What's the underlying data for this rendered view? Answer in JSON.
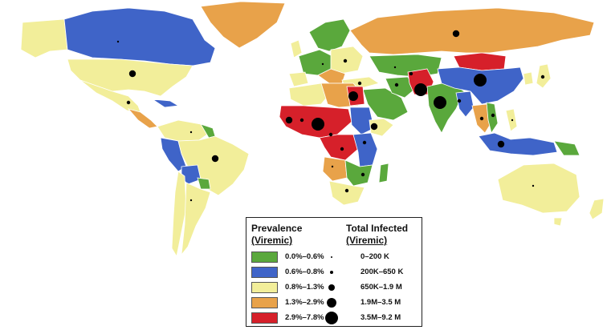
{
  "colors": {
    "c1": "#5aa83c",
    "c2": "#3f64c8",
    "c3": "#f2ee9a",
    "c4": "#e8a24a",
    "c5": "#d6202a"
  },
  "legend": {
    "prevalence_title": "Prevalence",
    "prevalence_sub": "(Viremic)",
    "infected_title": "Total Infected",
    "infected_sub": "(Viremic)",
    "prevalence_ranges": [
      {
        "label": "0.0%–0.6%",
        "color_key": "c1"
      },
      {
        "label": "0.6%–0.8%",
        "color_key": "c2"
      },
      {
        "label": "0.8%–1.3%",
        "color_key": "c3"
      },
      {
        "label": "1.3%–2.9%",
        "color_key": "c4"
      },
      {
        "label": "2.9%–7.8%",
        "color_key": "c5"
      }
    ],
    "infected_ranges": [
      {
        "label": "0–200 K",
        "size_rank": 1
      },
      {
        "label": "200K–650 K",
        "size_rank": 2
      },
      {
        "label": "650K–1.9 M",
        "size_rank": 3
      },
      {
        "label": "1.9M–3.5 M",
        "size_rank": 4
      },
      {
        "label": "3.5M–9.2 M",
        "size_rank": 5
      }
    ]
  }
}
